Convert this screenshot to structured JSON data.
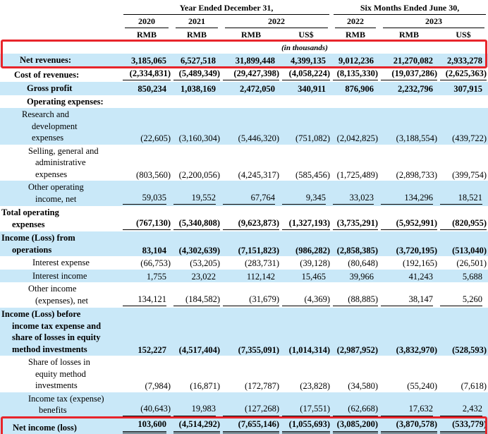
{
  "colors": {
    "row_highlight": "#c9e8f8",
    "annotation_box": "#e8252b"
  },
  "header": {
    "period_groups": [
      {
        "label": "Year Ended December 31,"
      },
      {
        "label": "Six Months Ended June 30,"
      }
    ],
    "years": [
      {
        "label": "2020"
      },
      {
        "label": "2021"
      },
      {
        "label": "2022"
      },
      {
        "label": "2022"
      },
      {
        "label": "2023"
      }
    ],
    "currencies": [
      "RMB",
      "RMB",
      "RMB",
      "US$",
      "RMB",
      "RMB",
      "US$"
    ],
    "units_note": "(in thousands)"
  },
  "rows": [
    {
      "label": "Net revenues:",
      "bold": true,
      "highlight": true,
      "rule": null,
      "indent": "a",
      "boxed": true,
      "values": [
        "3,185,065",
        "6,527,518",
        "31,899,448",
        "4,399,135",
        "9,012,236",
        "21,270,082",
        "2,933,278"
      ]
    },
    {
      "label": "Cost of revenues:",
      "bold": true,
      "highlight": false,
      "rule": "single",
      "indent": "b",
      "values": [
        "(2,334,831)",
        "(5,489,349)",
        "(29,427,398)",
        "(4,058,224)",
        "(8,135,330)",
        "(19,037,286)",
        "(2,625,363)"
      ]
    },
    {
      "label": "Gross profit",
      "bold": true,
      "highlight": true,
      "rule": null,
      "indent": "c",
      "values": [
        "850,234",
        "1,038,169",
        "2,472,050",
        "340,911",
        "876,906",
        "2,232,796",
        "307,915"
      ]
    },
    {
      "label": "Operating expenses:",
      "bold": true,
      "highlight": false,
      "rule": null,
      "indent": "c",
      "values": [
        "",
        "",
        "",
        "",
        "",
        "",
        ""
      ]
    },
    {
      "label": "Research and\ndevelopment\nexpenses",
      "bold": false,
      "highlight": true,
      "rule": null,
      "indent": "d",
      "values": [
        "(22,605)",
        "(3,160,304)",
        "(5,446,320)",
        "(751,082)",
        "(2,042,825)",
        "(3,188,554)",
        "(439,722)"
      ]
    },
    {
      "label": "Selling, general and\nadministrative\nexpenses",
      "bold": false,
      "highlight": false,
      "rule": null,
      "indent": "e",
      "values": [
        "(803,560)",
        "(2,200,056)",
        "(4,245,317)",
        "(585,456)",
        "(1,725,489)",
        "(2,898,733)",
        "(399,754)"
      ]
    },
    {
      "label": "Other operating\nincome, net",
      "bold": false,
      "highlight": true,
      "rule": "single",
      "indent": "e",
      "values": [
        "59,035",
        "19,552",
        "67,764",
        "9,345",
        "33,023",
        "134,296",
        "18,521"
      ]
    },
    {
      "label": "Total operating\nexpenses",
      "bold": true,
      "highlight": false,
      "rule": "single",
      "indent": "f",
      "values": [
        "(767,130)",
        "(5,340,808)",
        "(9,623,873)",
        "(1,327,193)",
        "(3,735,291)",
        "(5,952,991)",
        "(820,955)"
      ]
    },
    {
      "label": "Income (Loss) from\noperations",
      "bold": true,
      "highlight": true,
      "rule": null,
      "indent": "f",
      "values": [
        "83,104",
        "(4,302,639)",
        "(7,151,823)",
        "(986,282)",
        "(2,858,385)",
        "(3,720,195)",
        "(513,040)"
      ]
    },
    {
      "label": "Interest expense",
      "bold": false,
      "highlight": false,
      "rule": null,
      "indent": "g",
      "values": [
        "(66,753)",
        "(53,205)",
        "(283,731)",
        "(39,128)",
        "(80,648)",
        "(192,165)",
        "(26,501)"
      ]
    },
    {
      "label": "Interest income",
      "bold": false,
      "highlight": true,
      "rule": null,
      "indent": "g",
      "values": [
        "1,755",
        "23,022",
        "112,142",
        "15,465",
        "39,966",
        "41,243",
        "5,688"
      ]
    },
    {
      "label": "Other income\n(expenses), net",
      "bold": false,
      "highlight": false,
      "rule": "single",
      "indent": "e",
      "values": [
        "134,121",
        "(184,582)",
        "(31,679)",
        "(4,369)",
        "(88,885)",
        "38,147",
        "5,260"
      ]
    },
    {
      "label": "Income (Loss) before\nincome tax expense and\nshare of losses in equity\nmethod investments",
      "bold": true,
      "highlight": true,
      "rule": null,
      "indent": "f",
      "values": [
        "152,227",
        "(4,517,404)",
        "(7,355,091)",
        "(1,014,314)",
        "(2,987,952)",
        "(3,832,970)",
        "(528,593)"
      ]
    },
    {
      "label": "Share of losses in\nequity method\ninvestments",
      "bold": false,
      "highlight": false,
      "rule": null,
      "indent": "e",
      "values": [
        "(7,984)",
        "(16,871)",
        "(172,787)",
        "(23,828)",
        "(34,580)",
        "(55,240)",
        "(7,618)"
      ]
    },
    {
      "label": "Income tax (expense)\nbenefits",
      "bold": false,
      "highlight": true,
      "rule": "single",
      "indent": "h",
      "values": [
        "(40,643)",
        "19,983",
        "(127,268)",
        "(17,551)",
        "(62,668)",
        "17,632",
        "2,432"
      ]
    },
    {
      "label": "Net income (loss)",
      "bold": true,
      "highlight": true,
      "rule": "double",
      "indent": "i",
      "boxed": true,
      "values": [
        "103,600",
        "(4,514,292)",
        "(7,655,146)",
        "(1,055,693)",
        "(3,085,200)",
        "(3,870,578)",
        "(533,779)"
      ]
    }
  ]
}
